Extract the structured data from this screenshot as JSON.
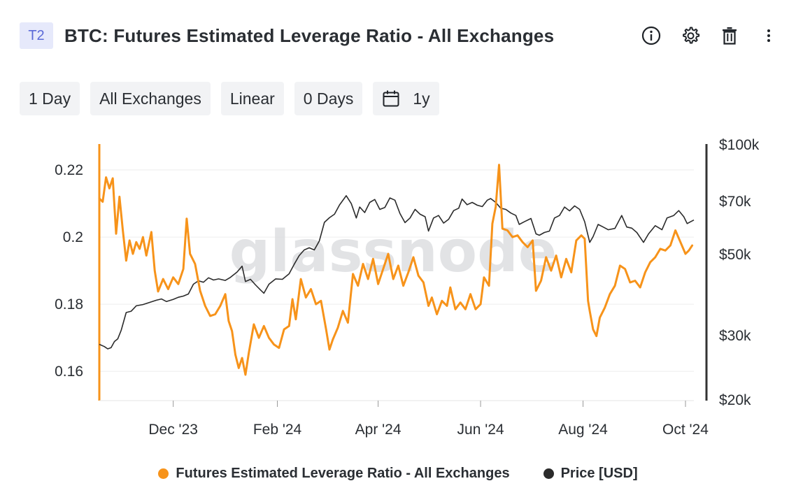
{
  "header": {
    "tag": "T2",
    "title": "BTC: Futures Estimated Leverage Ratio - All Exchanges",
    "icons": [
      "info-icon",
      "gear-icon",
      "trash-icon",
      "more-vertical-icon"
    ]
  },
  "toolbar": {
    "resolution": "1 Day",
    "exchange": "All Exchanges",
    "scale": "Linear",
    "sma": "0 Days",
    "range": "1y",
    "range_icon": "calendar-icon"
  },
  "watermark": "glassnode",
  "colors": {
    "leverage": "#f7931a",
    "price": "#2b2b2b",
    "grid": "#eeeeee",
    "left_axis": "#f7931a",
    "right_axis": "#333333"
  },
  "legend": {
    "leverage": "Futures Estimated Leverage Ratio - All Exchanges",
    "price": "Price [USD]"
  },
  "chart_data": {
    "type": "line",
    "x_start": "2023-10-18",
    "x_end": "2024-10-06",
    "x_ticks": [
      {
        "date": "2023-12-01",
        "label": "Dec '23"
      },
      {
        "date": "2024-02-01",
        "label": "Feb '24"
      },
      {
        "date": "2024-04-01",
        "label": "Apr '24"
      },
      {
        "date": "2024-06-01",
        "label": "Jun '24"
      },
      {
        "date": "2024-08-01",
        "label": "Aug '24"
      },
      {
        "date": "2024-10-01",
        "label": "Oct '24"
      }
    ],
    "y_left": {
      "ticks": [
        0.16,
        0.18,
        0.2,
        0.22
      ],
      "labels": [
        "0.16",
        "0.18",
        "0.2",
        "0.22"
      ],
      "range": [
        0.1515,
        0.2275
      ]
    },
    "y_right": {
      "scale": "log",
      "ticks": [
        20000,
        30000,
        50000,
        70000,
        100000
      ],
      "labels": [
        "$20k",
        "$30k",
        "$50k",
        "$70k",
        "$100k"
      ],
      "range": [
        20000,
        100000
      ]
    },
    "grid": true,
    "series": [
      {
        "name": "Futures Estimated Leverage Ratio - All Exchanges",
        "axis": "left",
        "points": [
          [
            "2023-10-18",
            0.2115
          ],
          [
            "2023-10-20",
            0.2105
          ],
          [
            "2023-10-22",
            0.2178
          ],
          [
            "2023-10-24",
            0.2145
          ],
          [
            "2023-10-26",
            0.2175
          ],
          [
            "2023-10-28",
            0.201
          ],
          [
            "2023-10-30",
            0.212
          ],
          [
            "2023-11-01",
            0.202
          ],
          [
            "2023-11-03",
            0.193
          ],
          [
            "2023-11-05",
            0.199
          ],
          [
            "2023-11-07",
            0.195
          ],
          [
            "2023-11-09",
            0.1985
          ],
          [
            "2023-11-11",
            0.1965
          ],
          [
            "2023-11-13",
            0.2
          ],
          [
            "2023-11-15",
            0.1945
          ],
          [
            "2023-11-18",
            0.2015
          ],
          [
            "2023-11-20",
            0.19
          ],
          [
            "2023-11-22",
            0.1838
          ],
          [
            "2023-11-25",
            0.1875
          ],
          [
            "2023-11-28",
            0.1845
          ],
          [
            "2023-12-01",
            0.188
          ],
          [
            "2023-12-04",
            0.186
          ],
          [
            "2023-12-07",
            0.1905
          ],
          [
            "2023-12-09",
            0.2055
          ],
          [
            "2023-12-11",
            0.195
          ],
          [
            "2023-12-14",
            0.192
          ],
          [
            "2023-12-17",
            0.184
          ],
          [
            "2023-12-20",
            0.1795
          ],
          [
            "2023-12-23",
            0.1765
          ],
          [
            "2023-12-26",
            0.177
          ],
          [
            "2023-12-29",
            0.1795
          ],
          [
            "2024-01-01",
            0.183
          ],
          [
            "2024-01-03",
            0.175
          ],
          [
            "2024-01-05",
            0.172
          ],
          [
            "2024-01-07",
            0.165
          ],
          [
            "2024-01-09",
            0.161
          ],
          [
            "2024-01-11",
            0.164
          ],
          [
            "2024-01-13",
            0.159
          ],
          [
            "2024-01-15",
            0.1655
          ],
          [
            "2024-01-18",
            0.174
          ],
          [
            "2024-01-21",
            0.17
          ],
          [
            "2024-01-24",
            0.1735
          ],
          [
            "2024-01-27",
            0.17
          ],
          [
            "2024-01-30",
            0.168
          ],
          [
            "2024-02-02",
            0.167
          ],
          [
            "2024-02-05",
            0.1725
          ],
          [
            "2024-02-08",
            0.1735
          ],
          [
            "2024-02-10",
            0.1815
          ],
          [
            "2024-02-12",
            0.1755
          ],
          [
            "2024-02-15",
            0.1875
          ],
          [
            "2024-02-18",
            0.182
          ],
          [
            "2024-02-21",
            0.1845
          ],
          [
            "2024-02-24",
            0.18
          ],
          [
            "2024-02-27",
            0.181
          ],
          [
            "2024-03-01",
            0.1725
          ],
          [
            "2024-03-03",
            0.1665
          ],
          [
            "2024-03-05",
            0.1695
          ],
          [
            "2024-03-08",
            0.173
          ],
          [
            "2024-03-11",
            0.178
          ],
          [
            "2024-03-14",
            0.1745
          ],
          [
            "2024-03-17",
            0.189
          ],
          [
            "2024-03-20",
            0.1855
          ],
          [
            "2024-03-23",
            0.192
          ],
          [
            "2024-03-26",
            0.1875
          ],
          [
            "2024-03-29",
            0.1935
          ],
          [
            "2024-04-01",
            0.186
          ],
          [
            "2024-04-04",
            0.1905
          ],
          [
            "2024-04-07",
            0.195
          ],
          [
            "2024-04-10",
            0.1875
          ],
          [
            "2024-04-13",
            0.1915
          ],
          [
            "2024-04-16",
            0.1855
          ],
          [
            "2024-04-19",
            0.1895
          ],
          [
            "2024-04-22",
            0.194
          ],
          [
            "2024-04-25",
            0.1885
          ],
          [
            "2024-04-28",
            0.1865
          ],
          [
            "2024-05-01",
            0.1795
          ],
          [
            "2024-05-03",
            0.182
          ],
          [
            "2024-05-06",
            0.177
          ],
          [
            "2024-05-09",
            0.181
          ],
          [
            "2024-05-12",
            0.1795
          ],
          [
            "2024-05-14",
            0.185
          ],
          [
            "2024-05-17",
            0.1785
          ],
          [
            "2024-05-20",
            0.1805
          ],
          [
            "2024-05-23",
            0.1785
          ],
          [
            "2024-05-26",
            0.183
          ],
          [
            "2024-05-29",
            0.1785
          ],
          [
            "2024-06-01",
            0.18
          ],
          [
            "2024-06-03",
            0.188
          ],
          [
            "2024-06-06",
            0.1855
          ],
          [
            "2024-06-08",
            0.204
          ],
          [
            "2024-06-10",
            0.209
          ],
          [
            "2024-06-12",
            0.2215
          ],
          [
            "2024-06-14",
            0.2025
          ],
          [
            "2024-06-17",
            0.202
          ],
          [
            "2024-06-20",
            0.2
          ],
          [
            "2024-06-23",
            0.2005
          ],
          [
            "2024-06-26",
            0.1985
          ],
          [
            "2024-06-29",
            0.197
          ],
          [
            "2024-07-02",
            0.199
          ],
          [
            "2024-07-04",
            0.184
          ],
          [
            "2024-07-07",
            0.187
          ],
          [
            "2024-07-10",
            0.194
          ],
          [
            "2024-07-13",
            0.19
          ],
          [
            "2024-07-16",
            0.1945
          ],
          [
            "2024-07-19",
            0.188
          ],
          [
            "2024-07-22",
            0.1935
          ],
          [
            "2024-07-25",
            0.1895
          ],
          [
            "2024-07-28",
            0.199
          ],
          [
            "2024-07-31",
            0.2005
          ],
          [
            "2024-08-02",
            0.1995
          ],
          [
            "2024-08-04",
            0.181
          ],
          [
            "2024-08-05",
            0.178
          ],
          [
            "2024-08-07",
            0.1725
          ],
          [
            "2024-08-09",
            0.1705
          ],
          [
            "2024-08-11",
            0.176
          ],
          [
            "2024-08-14",
            0.179
          ],
          [
            "2024-08-17",
            0.183
          ],
          [
            "2024-08-20",
            0.1855
          ],
          [
            "2024-08-23",
            0.1915
          ],
          [
            "2024-08-26",
            0.1905
          ],
          [
            "2024-08-29",
            0.1865
          ],
          [
            "2024-09-01",
            0.187
          ],
          [
            "2024-09-04",
            0.185
          ],
          [
            "2024-09-07",
            0.1895
          ],
          [
            "2024-09-10",
            0.1925
          ],
          [
            "2024-09-13",
            0.194
          ],
          [
            "2024-09-16",
            0.1965
          ],
          [
            "2024-09-19",
            0.196
          ],
          [
            "2024-09-22",
            0.1975
          ],
          [
            "2024-09-25",
            0.202
          ],
          [
            "2024-09-28",
            0.1985
          ],
          [
            "2024-10-01",
            0.195
          ],
          [
            "2024-10-03",
            0.196
          ],
          [
            "2024-10-05",
            0.1975
          ]
        ]
      },
      {
        "name": "Price [USD]",
        "axis": "right",
        "points": [
          [
            "2023-10-18",
            28400
          ],
          [
            "2023-10-21",
            28000
          ],
          [
            "2023-10-23",
            27600
          ],
          [
            "2023-10-25",
            27800
          ],
          [
            "2023-10-27",
            28900
          ],
          [
            "2023-10-29",
            29400
          ],
          [
            "2023-10-31",
            31000
          ],
          [
            "2023-11-03",
            34700
          ],
          [
            "2023-11-06",
            35000
          ],
          [
            "2023-11-09",
            36200
          ],
          [
            "2023-11-13",
            36500
          ],
          [
            "2023-11-17",
            37000
          ],
          [
            "2023-11-21",
            37500
          ],
          [
            "2023-11-24",
            37800
          ],
          [
            "2023-11-27",
            37200
          ],
          [
            "2023-12-01",
            37700
          ],
          [
            "2023-12-04",
            38200
          ],
          [
            "2023-12-07",
            38500
          ],
          [
            "2023-12-10",
            39000
          ],
          [
            "2023-12-13",
            41500
          ],
          [
            "2023-12-16",
            42400
          ],
          [
            "2023-12-19",
            42000
          ],
          [
            "2023-12-22",
            43200
          ],
          [
            "2023-12-25",
            42600
          ],
          [
            "2023-12-28",
            42900
          ],
          [
            "2024-01-01",
            42500
          ],
          [
            "2024-01-04",
            43300
          ],
          [
            "2024-01-08",
            44800
          ],
          [
            "2024-01-11",
            46500
          ],
          [
            "2024-01-13",
            42200
          ],
          [
            "2024-01-16",
            42800
          ],
          [
            "2024-01-19",
            41300
          ],
          [
            "2024-01-22",
            40000
          ],
          [
            "2024-01-24",
            39200
          ],
          [
            "2024-01-27",
            41500
          ],
          [
            "2024-01-31",
            42900
          ],
          [
            "2024-02-04",
            42800
          ],
          [
            "2024-02-08",
            44300
          ],
          [
            "2024-02-11",
            47000
          ],
          [
            "2024-02-14",
            49700
          ],
          [
            "2024-02-17",
            51500
          ],
          [
            "2024-02-20",
            52200
          ],
          [
            "2024-02-23",
            51500
          ],
          [
            "2024-02-26",
            54500
          ],
          [
            "2024-02-29",
            61300
          ],
          [
            "2024-03-03",
            63100
          ],
          [
            "2024-03-06",
            64500
          ],
          [
            "2024-03-09",
            68400
          ],
          [
            "2024-03-13",
            72500
          ],
          [
            "2024-03-16",
            69000
          ],
          [
            "2024-03-19",
            63000
          ],
          [
            "2024-03-21",
            67500
          ],
          [
            "2024-03-24",
            65200
          ],
          [
            "2024-03-27",
            69500
          ],
          [
            "2024-03-30",
            70800
          ],
          [
            "2024-04-02",
            66500
          ],
          [
            "2024-04-05",
            67300
          ],
          [
            "2024-04-08",
            71500
          ],
          [
            "2024-04-11",
            70500
          ],
          [
            "2024-04-14",
            64800
          ],
          [
            "2024-04-17",
            61200
          ],
          [
            "2024-04-20",
            63000
          ],
          [
            "2024-04-23",
            66500
          ],
          [
            "2024-04-26",
            64500
          ],
          [
            "2024-04-29",
            63500
          ],
          [
            "2024-05-01",
            58000
          ],
          [
            "2024-05-04",
            63000
          ],
          [
            "2024-05-07",
            64000
          ],
          [
            "2024-05-10",
            61000
          ],
          [
            "2024-05-13",
            62500
          ],
          [
            "2024-05-16",
            66000
          ],
          [
            "2024-05-19",
            67000
          ],
          [
            "2024-05-21",
            71000
          ],
          [
            "2024-05-24",
            68500
          ],
          [
            "2024-05-27",
            69500
          ],
          [
            "2024-05-30",
            68300
          ],
          [
            "2024-06-02",
            67700
          ],
          [
            "2024-06-05",
            70500
          ],
          [
            "2024-06-07",
            71200
          ],
          [
            "2024-06-10",
            69500
          ],
          [
            "2024-06-13",
            67000
          ],
          [
            "2024-06-16",
            66500
          ],
          [
            "2024-06-19",
            65000
          ],
          [
            "2024-06-22",
            64000
          ],
          [
            "2024-06-24",
            60500
          ],
          [
            "2024-06-27",
            61500
          ],
          [
            "2024-07-01",
            62800
          ],
          [
            "2024-07-04",
            57000
          ],
          [
            "2024-07-06",
            56500
          ],
          [
            "2024-07-09",
            57500
          ],
          [
            "2024-07-12",
            58000
          ],
          [
            "2024-07-15",
            63000
          ],
          [
            "2024-07-18",
            64000
          ],
          [
            "2024-07-21",
            67500
          ],
          [
            "2024-07-24",
            65900
          ],
          [
            "2024-07-27",
            68000
          ],
          [
            "2024-07-30",
            66500
          ],
          [
            "2024-08-02",
            61500
          ],
          [
            "2024-08-05",
            54000
          ],
          [
            "2024-08-07",
            56000
          ],
          [
            "2024-08-10",
            60500
          ],
          [
            "2024-08-13",
            59500
          ],
          [
            "2024-08-16",
            58500
          ],
          [
            "2024-08-20",
            59000
          ],
          [
            "2024-08-24",
            64000
          ],
          [
            "2024-08-27",
            59500
          ],
          [
            "2024-08-30",
            59100
          ],
          [
            "2024-09-02",
            57500
          ],
          [
            "2024-09-06",
            54000
          ],
          [
            "2024-09-09",
            57000
          ],
          [
            "2024-09-13",
            60000
          ],
          [
            "2024-09-17",
            58500
          ],
          [
            "2024-09-20",
            63000
          ],
          [
            "2024-09-24",
            64000
          ],
          [
            "2024-09-27",
            66000
          ],
          [
            "2024-09-30",
            63500
          ],
          [
            "2024-10-02",
            60800
          ],
          [
            "2024-10-04",
            61500
          ],
          [
            "2024-10-06",
            62200
          ]
        ]
      }
    ]
  }
}
